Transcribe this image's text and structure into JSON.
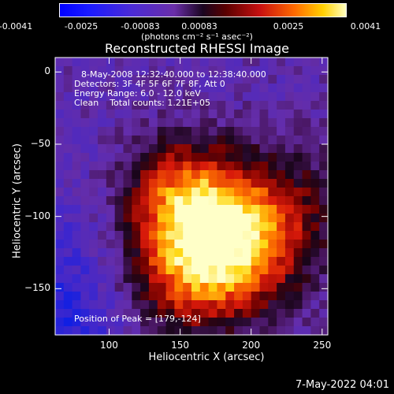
{
  "colorbar": {
    "tick_labels": [
      "-0.0041",
      "-0.0025",
      "-0.00083",
      "0.00083",
      "0.0025",
      "0.0041"
    ],
    "units": "(photons cm⁻² s⁻¹ asec⁻²)"
  },
  "chart_data": {
    "type": "heatmap",
    "title": "Reconstructed RHESSI Image",
    "xlabel": "Heliocentric X (arcsec)",
    "ylabel": "Heliocentric Y (arcsec)",
    "xlim": [
      62,
      254
    ],
    "ylim": [
      -182,
      10
    ],
    "x_ticks": [
      100,
      150,
      200,
      250
    ],
    "y_ticks": [
      0,
      -50,
      -100,
      -150
    ],
    "x_tick_labels": [
      "100",
      "150",
      "200",
      "250"
    ],
    "y_tick_labels": [
      "0",
      "−50",
      "−100",
      "−150"
    ],
    "colorbar_range": [
      -0.0041,
      0.0041
    ],
    "peak": [
      179,
      -124
    ],
    "annotations": {
      "time": "8-May-2008 12:32:40.000 to 12:38:40.000",
      "detectors": "Detectors: 3F 4F 5F 6F 7F 8F, Att 0",
      "energy": "Energy Range: 6.0 - 12.0 keV",
      "clean": "Clean    Total counts: 1.21E+05",
      "peak_text": "Position of Peak = [179,-124]"
    }
  },
  "footer": {
    "date": "7-May-2022 04:01"
  }
}
